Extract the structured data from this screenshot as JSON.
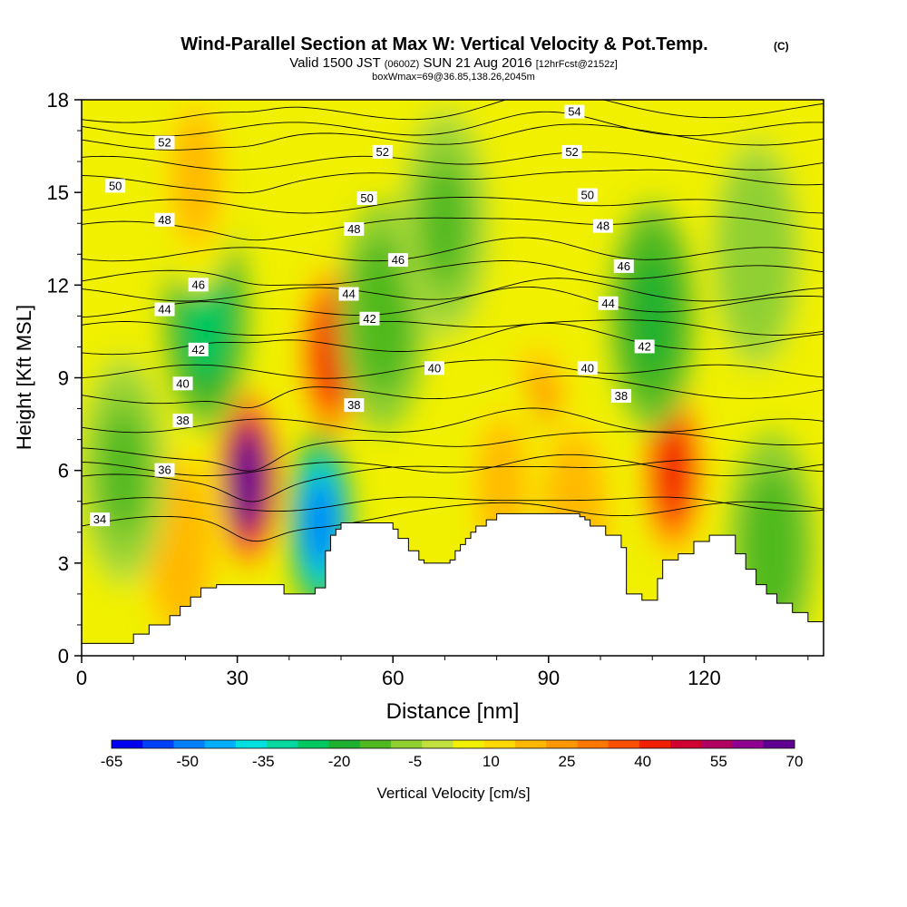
{
  "chart_data": {
    "type": "heatmap",
    "title": "Wind-Parallel Section at Max W: Vertical Velocity & Pot.Temp.",
    "title_mark": "(C)",
    "subtitle": {
      "pre": "Valid 1500 JST",
      "utc": "(0600Z)",
      "mid": "SUN 21 Aug 2016",
      "fcst": "[12hrFcst@2152z]"
    },
    "box_note": "boxWmax=69@36.85,138.26,2045m",
    "xlabel": "Distance [nm]",
    "ylabel": "Height [Kft MSL]",
    "xlim": [
      0,
      143
    ],
    "ylim": [
      0,
      18
    ],
    "xticks": [
      "0",
      "30",
      "60",
      "90",
      "120"
    ],
    "xtick_values": [
      0,
      30,
      60,
      90,
      120
    ],
    "yticks": [
      "0",
      "3",
      "6",
      "9",
      "12",
      "15",
      "18"
    ],
    "ytick_values": [
      0,
      3,
      6,
      9,
      12,
      15,
      18
    ],
    "colorbar": {
      "label": "Vertical Velocity [cm/s]",
      "tick_labels": [
        "-65",
        "-50",
        "-35",
        "-20",
        "-5",
        "10",
        "25",
        "40",
        "55",
        "70"
      ],
      "tick_values": [
        -65,
        -50,
        -35,
        -20,
        -5,
        10,
        25,
        40,
        55,
        70
      ],
      "colors": [
        "#0000f0",
        "#0040ff",
        "#0080ff",
        "#00b0ff",
        "#00e0e0",
        "#00d8a0",
        "#00c860",
        "#20b030",
        "#50b820",
        "#90d030",
        "#c0e040",
        "#f0f000",
        "#ffd800",
        "#ffb800",
        "#ff9800",
        "#ff7800",
        "#ff5000",
        "#f02000",
        "#d00030",
        "#b00060",
        "#900090",
        "#600090"
      ]
    },
    "terrain": {
      "x": [
        0,
        10,
        13,
        15,
        17,
        19,
        21,
        23,
        26,
        31,
        39,
        45,
        47,
        48,
        49,
        50,
        52,
        55,
        58,
        60,
        61,
        63,
        65,
        66,
        70,
        71,
        72,
        73,
        74,
        75,
        76,
        78,
        80,
        82,
        84,
        86,
        88,
        90,
        92,
        94,
        96,
        97,
        98,
        101,
        104,
        105,
        108,
        110,
        111,
        112,
        115,
        118,
        121,
        122,
        124,
        126,
        128,
        130,
        132,
        134,
        137,
        140,
        143
      ],
      "height_kft": [
        0.4,
        0.7,
        1.0,
        1.0,
        1.3,
        1.6,
        1.9,
        2.2,
        2.3,
        2.3,
        2.0,
        2.2,
        3.4,
        3.9,
        4.1,
        4.3,
        4.3,
        4.3,
        4.3,
        4.1,
        3.8,
        3.4,
        3.1,
        3.0,
        3.0,
        3.1,
        3.4,
        3.6,
        3.8,
        4.0,
        4.2,
        4.4,
        4.6,
        4.6,
        4.6,
        4.6,
        4.6,
        4.6,
        4.6,
        4.6,
        4.5,
        4.4,
        4.2,
        3.9,
        3.5,
        2.0,
        1.8,
        1.8,
        2.5,
        3.1,
        3.3,
        3.7,
        3.9,
        3.9,
        3.9,
        3.3,
        2.8,
        2.3,
        2.0,
        1.7,
        1.4,
        1.1,
        1.0
      ]
    },
    "w_series": {
      "units": "cm/s",
      "features": [
        {
          "x": 32,
          "z_kft": 5.7,
          "w": 70
        },
        {
          "x": 48,
          "z_kft": 9.8,
          "w": 45
        },
        {
          "x": 46,
          "z_kft": 4.3,
          "w": -50
        },
        {
          "x": 114,
          "z_kft": 6.0,
          "w": 45
        },
        {
          "x": 88,
          "z_kft": 7.0,
          "w": 22
        },
        {
          "x": 24,
          "z_kft": 11.0,
          "w": -25
        },
        {
          "x": 110,
          "z_kft": 11.0,
          "w": -20
        },
        {
          "x": 58,
          "z_kft": 11.0,
          "w": -15
        },
        {
          "x": 19,
          "z_kft": 3.5,
          "w": 20
        },
        {
          "x": 22,
          "z_kft": 15.5,
          "w": 15
        },
        {
          "x": 81,
          "z_kft": 5.5,
          "w": 15
        },
        {
          "x": 95,
          "z_kft": 4.5,
          "w": 20
        },
        {
          "x": 8,
          "z_kft": 6.0,
          "w": -10
        },
        {
          "x": 133,
          "z_kft": 3.5,
          "w": -15
        },
        {
          "x": 70,
          "z_kft": 14.0,
          "w": -10
        },
        {
          "x": 130,
          "z_kft": 13.0,
          "w": -8
        }
      ]
    },
    "theta_contours": [
      {
        "label": "34",
        "z0": 4.2,
        "x": [
          0,
          10,
          20,
          31
        ]
      },
      {
        "label": "36",
        "z0": 5.6,
        "x": [
          0,
          20,
          40,
          46
        ]
      },
      {
        "label": "38",
        "z0": 6.5,
        "x": [
          0,
          30,
          48,
          55,
          70,
          80,
          90,
          100,
          110,
          120,
          130,
          143
        ]
      },
      {
        "label": "40",
        "z0": 8.4,
        "x": [
          0,
          15,
          30,
          50,
          70,
          90,
          110,
          125,
          143
        ]
      },
      {
        "label": "42",
        "z0": 10.0,
        "x": [
          0,
          20,
          40,
          60,
          80,
          100,
          120,
          143
        ]
      },
      {
        "label": "44",
        "z0": 11.2,
        "x": [
          0,
          20,
          40,
          60,
          80,
          100,
          120,
          143
        ]
      },
      {
        "label": "46",
        "z0": 12.2,
        "x": [
          0,
          20,
          40,
          60,
          80,
          100,
          120,
          143
        ]
      },
      {
        "label": "48",
        "z0": 13.8,
        "x": [
          0,
          20,
          40,
          60,
          80,
          100,
          120,
          143
        ]
      },
      {
        "label": "50",
        "z0": 15.3,
        "x": [
          0,
          20,
          40,
          60,
          80,
          100,
          120,
          143
        ]
      },
      {
        "label": "52",
        "z0": 16.6,
        "x": [
          0,
          20,
          40,
          60,
          80,
          100,
          120,
          143
        ]
      },
      {
        "label": "54",
        "z0": 17.5,
        "x": [
          0,
          20,
          40,
          60,
          80,
          100,
          120,
          143
        ]
      }
    ],
    "theta_labels": [
      {
        "text": "34",
        "x": 3.5,
        "z": 4.4
      },
      {
        "text": "36",
        "x": 16,
        "z": 6.0
      },
      {
        "text": "38",
        "x": 19.5,
        "z": 7.6
      },
      {
        "text": "38",
        "x": 52.5,
        "z": 8.1
      },
      {
        "text": "38",
        "x": 104,
        "z": 8.4
      },
      {
        "text": "40",
        "x": 19.5,
        "z": 8.8
      },
      {
        "text": "40",
        "x": 68,
        "z": 9.3
      },
      {
        "text": "40",
        "x": 97.5,
        "z": 9.3
      },
      {
        "text": "42",
        "x": 22.5,
        "z": 9.9
      },
      {
        "text": "42",
        "x": 55.5,
        "z": 10.9
      },
      {
        "text": "42",
        "x": 108.5,
        "z": 10.0
      },
      {
        "text": "44",
        "x": 16,
        "z": 11.2
      },
      {
        "text": "44",
        "x": 51.5,
        "z": 11.7
      },
      {
        "text": "44",
        "x": 101.5,
        "z": 11.4
      },
      {
        "text": "46",
        "x": 22.5,
        "z": 12.0
      },
      {
        "text": "46",
        "x": 61,
        "z": 12.8
      },
      {
        "text": "46",
        "x": 104.5,
        "z": 12.6
      },
      {
        "text": "48",
        "x": 16,
        "z": 14.1
      },
      {
        "text": "48",
        "x": 52.5,
        "z": 13.8
      },
      {
        "text": "48",
        "x": 100.5,
        "z": 13.9
      },
      {
        "text": "50",
        "x": 6.5,
        "z": 15.2
      },
      {
        "text": "50",
        "x": 55,
        "z": 14.8
      },
      {
        "text": "50",
        "x": 97.5,
        "z": 14.9
      },
      {
        "text": "52",
        "x": 16,
        "z": 16.6
      },
      {
        "text": "52",
        "x": 58,
        "z": 16.3
      },
      {
        "text": "52",
        "x": 94.5,
        "z": 16.3
      },
      {
        "text": "54",
        "x": 95,
        "z": 17.6
      }
    ]
  }
}
